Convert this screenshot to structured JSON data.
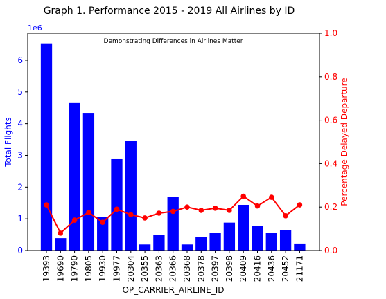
{
  "chart_data": {
    "type": "bar",
    "title": "Graph 1. Performance 2015 - 2019 All Airlines by ID",
    "annotation": "Demonstrating Differences in Airlines Matter",
    "xlabel": "OP_CARRIER_AIRLINE_ID",
    "ylabel_left": "Total Flights",
    "ylabel_right": "Percentage Delayed Departure",
    "left_axis_offset_label": "1e6",
    "left_axis_scale": 1000000,
    "ylim_left": [
      0,
      6.85
    ],
    "ylim_right": [
      0.0,
      1.0
    ],
    "left_ticks": [
      "0",
      "1",
      "2",
      "3",
      "4",
      "5",
      "6"
    ],
    "right_ticks": [
      "0.0",
      "0.2",
      "0.4",
      "0.6",
      "0.8",
      "1.0"
    ],
    "categories": [
      "19393",
      "19690",
      "19790",
      "19805",
      "19930",
      "19977",
      "20304",
      "20355",
      "20363",
      "20366",
      "20368",
      "20378",
      "20397",
      "20398",
      "20409",
      "20416",
      "20436",
      "20452",
      "21171"
    ],
    "series": [
      {
        "axis": "left",
        "kind": "bar",
        "color": "#0000ff",
        "values": [
          6.53,
          0.39,
          4.65,
          4.34,
          1.05,
          2.88,
          3.46,
          0.19,
          0.49,
          1.69,
          0.19,
          0.43,
          0.55,
          0.88,
          1.44,
          0.78,
          0.55,
          0.64,
          0.22
        ]
      },
      {
        "axis": "right",
        "kind": "line",
        "color": "#ff0000",
        "values": [
          0.21,
          0.08,
          0.14,
          0.175,
          0.13,
          0.19,
          0.165,
          0.15,
          0.172,
          0.18,
          0.2,
          0.185,
          0.195,
          0.185,
          0.25,
          0.205,
          0.245,
          0.16,
          0.21
        ]
      }
    ],
    "grid": false,
    "colors": {
      "left_axis": "#0000ff",
      "right_axis": "#ff0000",
      "text": "#000000"
    }
  }
}
